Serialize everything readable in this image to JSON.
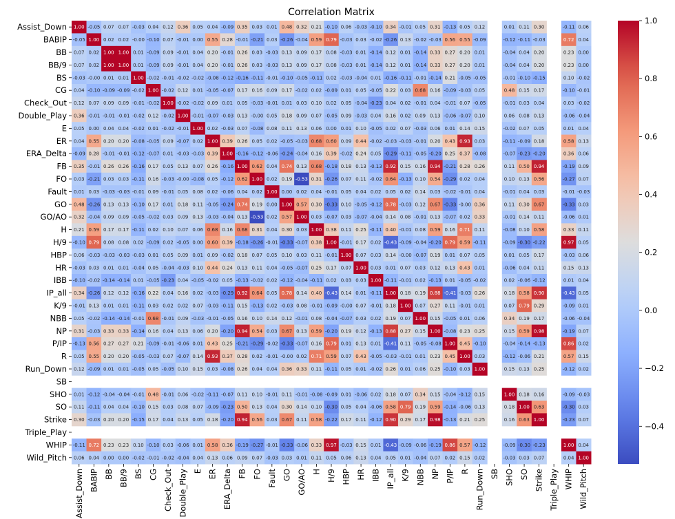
{
  "chart_data": {
    "type": "heatmap",
    "title": "Correlation Matrix",
    "xlabel": "",
    "ylabel": "",
    "colormap": "coolwarm",
    "vmin": -0.53,
    "vmax": 1.0,
    "colorbar_ticks": [
      1.0,
      0.8,
      0.6,
      0.4,
      0.2,
      0.0,
      -0.2,
      -0.4
    ],
    "colorbar_tick_labels": [
      "1.0",
      "0.8",
      "0.6",
      "0.4",
      "0.2",
      "0.0",
      "−0.2",
      "−0.4"
    ],
    "labels": [
      "Assist_Down",
      "BABIP",
      "BB",
      "BB/9",
      "BS",
      "CG",
      "Check_Out",
      "Double_Play",
      "E",
      "ER",
      "ERA_Delta",
      "FB",
      "FO",
      "Fault",
      "GO",
      "GO/AO",
      "H",
      "H/9",
      "HBP",
      "HR",
      "IBB",
      "IP_all",
      "K/9",
      "NBB",
      "NP",
      "P/IP",
      "R",
      "Run_Down",
      "SB",
      "SHO",
      "SO",
      "Strike",
      "Triple_Play",
      "WHIP",
      "Wild_Pitch"
    ],
    "matrix": [
      [
        1.0,
        -0.05,
        0.07,
        0.07,
        -0.03,
        0.04,
        0.12,
        0.36,
        0.05,
        0.04,
        -0.09,
        0.35,
        0.03,
        0.01,
        0.48,
        0.32,
        0.21,
        -0.1,
        0.06,
        -0.03,
        -0.1,
        0.34,
        -0.01,
        0.05,
        0.31,
        -0.13,
        0.05,
        0.12,
        null,
        0.01,
        0.11,
        0.3,
        null,
        -0.11,
        0.06
      ],
      [
        -0.05,
        1.0,
        0.02,
        0.02,
        -0.0,
        -0.1,
        0.07,
        -0.01,
        0.0,
        0.55,
        0.28,
        -0.01,
        -0.21,
        0.03,
        -0.26,
        -0.04,
        0.59,
        0.79,
        -0.03,
        0.03,
        -0.02,
        -0.26,
        0.13,
        -0.02,
        -0.03,
        0.56,
        0.55,
        -0.09,
        null,
        -0.12,
        -0.11,
        -0.03,
        null,
        0.72,
        0.04
      ],
      [
        0.07,
        0.02,
        1.0,
        1.0,
        0.01,
        -0.09,
        0.09,
        -0.01,
        0.04,
        0.2,
        -0.01,
        0.26,
        0.03,
        -0.03,
        0.13,
        0.09,
        0.17,
        0.08,
        -0.03,
        0.01,
        -0.14,
        0.12,
        0.01,
        -0.14,
        0.33,
        0.27,
        0.2,
        0.01,
        null,
        -0.04,
        0.04,
        0.2,
        null,
        0.23,
        0.0
      ],
      [
        0.07,
        0.02,
        1.0,
        1.0,
        0.01,
        -0.09,
        0.09,
        -0.01,
        0.04,
        0.2,
        -0.01,
        0.26,
        0.03,
        -0.03,
        0.13,
        0.09,
        0.17,
        0.08,
        -0.03,
        0.01,
        -0.14,
        0.12,
        0.01,
        -0.14,
        0.33,
        0.27,
        0.2,
        0.01,
        null,
        -0.04,
        0.04,
        0.2,
        null,
        0.23,
        0.0
      ],
      [
        -0.03,
        -0.0,
        0.01,
        0.01,
        1.0,
        -0.02,
        -0.01,
        -0.02,
        -0.02,
        -0.08,
        -0.12,
        -0.16,
        -0.11,
        -0.01,
        -0.1,
        -0.05,
        -0.11,
        0.02,
        -0.03,
        -0.04,
        0.01,
        -0.16,
        -0.11,
        -0.01,
        -0.14,
        0.21,
        -0.05,
        -0.05,
        null,
        -0.01,
        -0.1,
        -0.15,
        null,
        0.1,
        -0.02
      ],
      [
        0.04,
        -0.1,
        -0.09,
        -0.09,
        -0.02,
        1.0,
        -0.02,
        0.12,
        0.01,
        -0.05,
        -0.07,
        0.17,
        0.16,
        0.09,
        0.17,
        -0.02,
        0.02,
        -0.09,
        0.01,
        0.05,
        -0.05,
        0.22,
        0.03,
        0.68,
        0.16,
        -0.09,
        -0.03,
        0.05,
        null,
        0.48,
        0.15,
        0.17,
        null,
        -0.1,
        -0.01
      ],
      [
        0.12,
        0.07,
        0.09,
        0.09,
        -0.01,
        -0.02,
        1.0,
        -0.02,
        -0.02,
        0.09,
        0.01,
        0.05,
        -0.03,
        -0.01,
        0.01,
        0.03,
        0.1,
        0.02,
        0.05,
        -0.04,
        -0.23,
        0.04,
        0.02,
        -0.01,
        0.04,
        -0.01,
        0.07,
        -0.05,
        null,
        -0.01,
        0.03,
        0.04,
        null,
        0.03,
        -0.02
      ],
      [
        0.36,
        -0.01,
        -0.01,
        -0.01,
        -0.02,
        0.12,
        -0.02,
        1.0,
        -0.01,
        -0.07,
        -0.03,
        0.13,
        -0.0,
        0.05,
        0.18,
        0.09,
        0.07,
        -0.05,
        0.09,
        -0.03,
        0.04,
        0.16,
        0.02,
        0.09,
        0.13,
        -0.06,
        -0.07,
        0.1,
        null,
        0.06,
        0.08,
        0.13,
        null,
        -0.06,
        -0.04
      ],
      [
        0.05,
        0.0,
        0.04,
        0.04,
        -0.02,
        0.01,
        -0.02,
        -0.01,
        1.0,
        0.02,
        -0.03,
        0.07,
        -0.08,
        0.08,
        0.11,
        0.13,
        0.06,
        0.0,
        0.01,
        0.1,
        -0.05,
        0.02,
        0.07,
        -0.03,
        0.06,
        0.01,
        0.14,
        0.15,
        null,
        -0.02,
        0.07,
        0.05,
        null,
        0.01,
        0.04
      ],
      [
        0.04,
        0.55,
        0.2,
        0.2,
        -0.08,
        -0.05,
        0.09,
        -0.07,
        0.02,
        1.0,
        0.39,
        0.26,
        0.05,
        0.02,
        -0.05,
        -0.03,
        0.68,
        0.6,
        0.09,
        0.44,
        -0.02,
        -0.03,
        -0.03,
        -0.01,
        0.2,
        0.43,
        0.93,
        0.03,
        null,
        -0.11,
        -0.09,
        0.18,
        null,
        0.58,
        0.13
      ],
      [
        -0.09,
        0.28,
        -0.01,
        -0.01,
        -0.12,
        -0.07,
        0.01,
        -0.03,
        -0.03,
        0.39,
        1.0,
        -0.16,
        -0.12,
        -0.06,
        -0.24,
        -0.04,
        0.16,
        0.39,
        -0.02,
        0.24,
        0.05,
        -0.29,
        -0.11,
        -0.05,
        -0.2,
        0.25,
        0.37,
        -0.08,
        null,
        -0.07,
        -0.23,
        -0.2,
        null,
        0.36,
        0.06
      ],
      [
        0.35,
        -0.01,
        0.26,
        0.26,
        -0.16,
        0.17,
        0.05,
        0.13,
        0.07,
        0.26,
        -0.16,
        1.0,
        0.62,
        0.04,
        0.74,
        0.13,
        0.68,
        -0.18,
        0.18,
        0.13,
        -0.13,
        0.92,
        0.15,
        0.16,
        0.94,
        -0.21,
        0.28,
        0.26,
        null,
        0.11,
        0.5,
        0.94,
        null,
        -0.19,
        0.09
      ],
      [
        0.03,
        -0.21,
        0.03,
        0.03,
        -0.11,
        0.16,
        -0.03,
        -0.0,
        -0.08,
        0.05,
        -0.12,
        0.62,
        1.0,
        0.02,
        0.19,
        -0.53,
        0.31,
        -0.26,
        0.07,
        0.11,
        -0.02,
        0.64,
        -0.13,
        0.1,
        0.54,
        -0.29,
        0.02,
        0.04,
        null,
        0.1,
        0.13,
        0.56,
        null,
        -0.27,
        0.07
      ],
      [
        0.01,
        0.03,
        -0.03,
        -0.03,
        -0.01,
        0.09,
        -0.01,
        0.05,
        0.08,
        0.02,
        -0.06,
        0.04,
        0.02,
        1.0,
        0.0,
        0.02,
        0.04,
        -0.01,
        0.05,
        0.04,
        0.02,
        0.05,
        0.02,
        0.14,
        0.03,
        -0.02,
        -0.01,
        0.04,
        null,
        -0.01,
        0.04,
        0.03,
        null,
        -0.01,
        -0.03
      ],
      [
        0.48,
        -0.26,
        0.13,
        0.13,
        -0.1,
        0.17,
        0.01,
        0.18,
        0.11,
        -0.05,
        -0.24,
        0.74,
        0.19,
        0.0,
        1.0,
        0.57,
        0.3,
        -0.33,
        0.1,
        -0.05,
        -0.12,
        0.78,
        -0.03,
        0.12,
        0.67,
        -0.33,
        -0.0,
        0.36,
        null,
        0.11,
        0.3,
        0.67,
        null,
        -0.33,
        0.03
      ],
      [
        0.32,
        -0.04,
        0.09,
        0.09,
        -0.05,
        -0.02,
        0.03,
        0.09,
        0.13,
        -0.03,
        -0.04,
        0.13,
        -0.53,
        0.02,
        0.57,
        1.0,
        0.03,
        -0.07,
        0.03,
        -0.07,
        -0.04,
        0.14,
        0.08,
        -0.01,
        0.13,
        -0.07,
        0.02,
        0.33,
        null,
        -0.01,
        0.14,
        0.11,
        null,
        -0.06,
        0.01
      ],
      [
        0.21,
        0.59,
        0.17,
        0.17,
        -0.11,
        0.02,
        0.1,
        0.07,
        0.06,
        0.68,
        0.16,
        0.68,
        0.31,
        0.04,
        0.3,
        0.03,
        1.0,
        0.38,
        0.11,
        0.25,
        -0.11,
        0.4,
        -0.01,
        0.08,
        0.59,
        0.16,
        0.71,
        0.11,
        null,
        -0.08,
        0.1,
        0.58,
        null,
        0.33,
        0.11
      ],
      [
        -0.1,
        0.79,
        0.08,
        0.08,
        0.02,
        -0.09,
        0.02,
        -0.05,
        0.0,
        0.6,
        0.39,
        -0.18,
        -0.26,
        -0.01,
        -0.33,
        -0.07,
        0.38,
        1.0,
        -0.01,
        0.17,
        0.02,
        -0.43,
        -0.09,
        -0.04,
        -0.2,
        0.79,
        0.59,
        -0.11,
        null,
        -0.09,
        -0.3,
        -0.22,
        null,
        0.97,
        0.05
      ],
      [
        0.06,
        -0.03,
        -0.03,
        -0.03,
        -0.03,
        0.01,
        0.05,
        0.09,
        0.01,
        0.09,
        -0.02,
        0.18,
        0.07,
        0.05,
        0.1,
        0.03,
        0.11,
        -0.01,
        1.0,
        0.07,
        0.03,
        0.14,
        -0.0,
        -0.07,
        0.19,
        0.01,
        0.07,
        0.05,
        null,
        0.01,
        0.05,
        0.17,
        null,
        -0.03,
        0.06
      ],
      [
        -0.03,
        0.03,
        0.01,
        0.01,
        -0.04,
        0.05,
        -0.04,
        -0.03,
        0.1,
        0.44,
        0.24,
        0.13,
        0.11,
        0.04,
        -0.05,
        -0.07,
        0.25,
        0.17,
        0.07,
        1.0,
        0.03,
        0.01,
        0.07,
        0.03,
        0.12,
        0.13,
        0.43,
        0.01,
        null,
        -0.06,
        0.04,
        0.11,
        null,
        0.15,
        0.13
      ],
      [
        -0.1,
        -0.02,
        -0.14,
        -0.14,
        0.01,
        -0.05,
        -0.23,
        0.04,
        -0.05,
        -0.02,
        0.05,
        -0.13,
        -0.02,
        0.02,
        -0.12,
        -0.04,
        -0.11,
        0.02,
        0.03,
        0.03,
        1.0,
        -0.11,
        -0.01,
        0.02,
        -0.13,
        0.01,
        -0.05,
        -0.02,
        null,
        0.02,
        -0.06,
        -0.12,
        null,
        0.01,
        0.04
      ],
      [
        0.34,
        -0.26,
        0.12,
        0.12,
        -0.16,
        0.22,
        0.04,
        0.16,
        0.02,
        -0.03,
        -0.29,
        0.92,
        0.64,
        0.05,
        0.78,
        0.14,
        0.4,
        -0.43,
        0.14,
        0.01,
        -0.11,
        1.0,
        0.18,
        0.19,
        0.88,
        -0.41,
        -0.03,
        0.26,
        null,
        0.18,
        0.58,
        0.9,
        null,
        -0.43,
        0.05
      ],
      [
        -0.01,
        0.13,
        0.01,
        0.01,
        -0.11,
        0.03,
        0.02,
        0.02,
        0.07,
        -0.03,
        -0.11,
        0.15,
        -0.13,
        0.02,
        -0.03,
        0.08,
        -0.01,
        -0.09,
        -0.0,
        0.07,
        -0.01,
        0.18,
        1.0,
        0.07,
        0.27,
        0.11,
        -0.01,
        0.01,
        null,
        0.07,
        0.79,
        0.29,
        null,
        -0.09,
        0.01
      ],
      [
        0.05,
        -0.02,
        -0.14,
        -0.14,
        -0.01,
        0.68,
        -0.01,
        0.09,
        -0.03,
        -0.01,
        -0.05,
        0.16,
        0.1,
        0.14,
        0.12,
        -0.01,
        0.08,
        -0.04,
        -0.07,
        0.03,
        0.02,
        0.19,
        0.07,
        1.0,
        0.15,
        -0.05,
        0.01,
        0.06,
        null,
        0.34,
        0.19,
        0.17,
        null,
        -0.06,
        -0.04
      ],
      [
        0.31,
        -0.03,
        0.33,
        0.33,
        -0.14,
        0.16,
        0.04,
        0.13,
        0.06,
        0.2,
        -0.2,
        0.94,
        0.54,
        0.03,
        0.67,
        0.13,
        0.59,
        -0.2,
        0.19,
        0.12,
        -0.13,
        0.88,
        0.27,
        0.15,
        1.0,
        -0.08,
        0.23,
        0.25,
        null,
        0.15,
        0.59,
        0.98,
        null,
        -0.19,
        0.07
      ],
      [
        -0.13,
        0.56,
        0.27,
        0.27,
        0.21,
        -0.09,
        -0.01,
        -0.06,
        0.01,
        0.43,
        0.25,
        -0.21,
        -0.29,
        -0.02,
        -0.33,
        -0.07,
        0.16,
        0.79,
        0.01,
        0.13,
        0.01,
        -0.41,
        0.11,
        -0.05,
        -0.08,
        1.0,
        0.45,
        -0.1,
        null,
        -0.04,
        -0.14,
        -0.13,
        null,
        0.86,
        0.02
      ],
      [
        0.05,
        0.55,
        0.2,
        0.2,
        -0.05,
        -0.03,
        0.07,
        -0.07,
        0.14,
        0.93,
        0.37,
        0.28,
        0.02,
        -0.01,
        -0.0,
        0.02,
        0.71,
        0.59,
        0.07,
        0.43,
        -0.05,
        -0.03,
        -0.01,
        0.01,
        0.23,
        0.45,
        1.0,
        0.03,
        null,
        -0.12,
        -0.06,
        0.21,
        null,
        0.57,
        0.15
      ],
      [
        0.12,
        -0.09,
        0.01,
        0.01,
        -0.05,
        0.05,
        -0.05,
        0.1,
        0.15,
        0.03,
        -0.08,
        0.26,
        0.04,
        0.04,
        0.36,
        0.33,
        0.11,
        -0.11,
        0.05,
        0.01,
        -0.02,
        0.26,
        0.01,
        0.06,
        0.25,
        -0.1,
        0.03,
        1.0,
        null,
        0.15,
        0.13,
        0.25,
        null,
        -0.12,
        0.02
      ],
      [
        null,
        null,
        null,
        null,
        null,
        null,
        null,
        null,
        null,
        null,
        null,
        null,
        null,
        null,
        null,
        null,
        null,
        null,
        null,
        null,
        null,
        null,
        null,
        null,
        null,
        null,
        null,
        null,
        null,
        null,
        null,
        null,
        null,
        null,
        null
      ],
      [
        0.01,
        -0.12,
        -0.04,
        -0.04,
        -0.01,
        0.48,
        -0.01,
        0.06,
        -0.02,
        -0.11,
        -0.07,
        0.11,
        0.1,
        -0.01,
        0.11,
        -0.01,
        -0.08,
        -0.09,
        0.01,
        -0.06,
        0.02,
        0.18,
        0.07,
        0.34,
        0.15,
        -0.04,
        -0.12,
        0.15,
        null,
        1.0,
        0.18,
        0.16,
        null,
        -0.09,
        -0.03
      ],
      [
        0.11,
        -0.11,
        0.04,
        0.04,
        -0.1,
        0.15,
        0.03,
        0.08,
        0.07,
        -0.09,
        -0.23,
        0.5,
        0.13,
        0.04,
        0.3,
        0.14,
        0.1,
        -0.3,
        0.05,
        0.04,
        -0.06,
        0.58,
        0.79,
        0.19,
        0.59,
        -0.14,
        -0.06,
        0.13,
        null,
        0.18,
        1.0,
        0.63,
        null,
        -0.3,
        0.03
      ],
      [
        0.3,
        -0.03,
        0.2,
        0.2,
        -0.15,
        0.17,
        0.04,
        0.13,
        0.05,
        0.18,
        -0.2,
        0.94,
        0.56,
        0.03,
        0.67,
        0.11,
        0.58,
        -0.22,
        0.17,
        0.11,
        -0.12,
        0.9,
        0.29,
        0.17,
        0.98,
        -0.13,
        0.21,
        0.25,
        null,
        0.16,
        0.63,
        1.0,
        null,
        -0.23,
        0.07
      ],
      [
        null,
        null,
        null,
        null,
        null,
        null,
        null,
        null,
        null,
        null,
        null,
        null,
        null,
        null,
        null,
        null,
        null,
        null,
        null,
        null,
        null,
        null,
        null,
        null,
        null,
        null,
        null,
        null,
        null,
        null,
        null,
        null,
        null,
        null,
        null
      ],
      [
        -0.11,
        0.72,
        0.23,
        0.23,
        0.1,
        -0.1,
        0.03,
        -0.06,
        0.01,
        0.58,
        0.36,
        -0.19,
        -0.27,
        -0.01,
        -0.33,
        -0.06,
        0.33,
        0.97,
        -0.03,
        0.15,
        0.01,
        -0.43,
        -0.09,
        -0.06,
        -0.19,
        0.86,
        0.57,
        -0.12,
        null,
        -0.09,
        -0.3,
        -0.23,
        null,
        1.0,
        0.04
      ],
      [
        0.06,
        0.04,
        0.0,
        0.0,
        -0.02,
        -0.01,
        -0.02,
        -0.04,
        0.04,
        0.13,
        0.06,
        0.09,
        0.07,
        -0.03,
        0.03,
        0.01,
        0.11,
        0.05,
        0.06,
        0.13,
        0.04,
        0.05,
        0.01,
        -0.04,
        0.07,
        0.02,
        0.15,
        0.02,
        null,
        -0.03,
        0.03,
        0.07,
        null,
        0.04,
        1.0
      ]
    ]
  }
}
